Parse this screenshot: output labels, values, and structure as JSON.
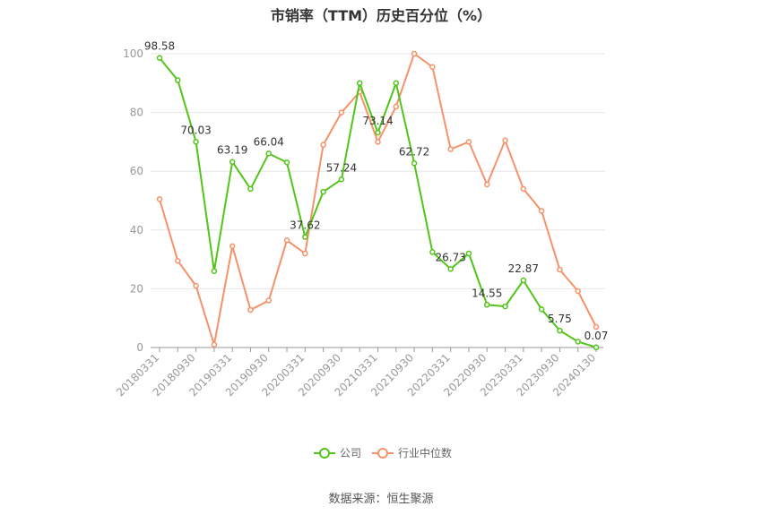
{
  "title": "市销率（TTM）历史百分位（%）",
  "source": "数据来源：恒生聚源",
  "chart_data": {
    "type": "line",
    "title": "市销率（TTM）历史百分位（%）",
    "x": [
      "20180331",
      "20180630",
      "20180930",
      "20181231",
      "20190331",
      "20190630",
      "20190930",
      "20191231",
      "20200331",
      "20200630",
      "20200930",
      "20201231",
      "20210331",
      "20210630",
      "20210930",
      "20211231",
      "20220331",
      "20220630",
      "20220930",
      "20221231",
      "20230331",
      "20230630",
      "20230930",
      "20231231",
      "20240130"
    ],
    "x_tick_labels": [
      "20180331",
      "20180930",
      "20190331",
      "20190930",
      "20200331",
      "20200930",
      "20210331",
      "20210930",
      "20220331",
      "20220930",
      "20230331",
      "20230930",
      "20240130"
    ],
    "ylim": [
      0,
      100
    ],
    "y_ticks": [
      0,
      20,
      40,
      60,
      80,
      100
    ],
    "grid": true,
    "legend_position": "bottom",
    "series": [
      {
        "name": "公司",
        "color": "#52c41a",
        "values": [
          98.58,
          91,
          70.03,
          26,
          63.19,
          54,
          66.04,
          63,
          37.62,
          53,
          57.24,
          90,
          73.14,
          90,
          62.72,
          32.5,
          26.73,
          32,
          14.55,
          14,
          22.87,
          13,
          5.75,
          2,
          0.07
        ],
        "labels": {
          "0": "98.58",
          "2": "70.03",
          "4": "63.19",
          "6": "66.04",
          "8": "37.62",
          "10": "57.24",
          "12": "73.14",
          "14": "62.72",
          "16": "26.73",
          "18": "14.55",
          "20": "22.87",
          "22": "5.75",
          "24": "0.07"
        }
      },
      {
        "name": "行业中位数",
        "color": "#f5926a",
        "values": [
          50.5,
          29.5,
          21,
          1,
          34.5,
          12.8,
          16,
          36.5,
          32,
          69,
          80,
          87,
          70,
          82,
          100,
          95.5,
          67.5,
          70,
          55.5,
          70.5,
          54,
          46.5,
          26.5,
          19.2,
          7
        ]
      }
    ]
  }
}
